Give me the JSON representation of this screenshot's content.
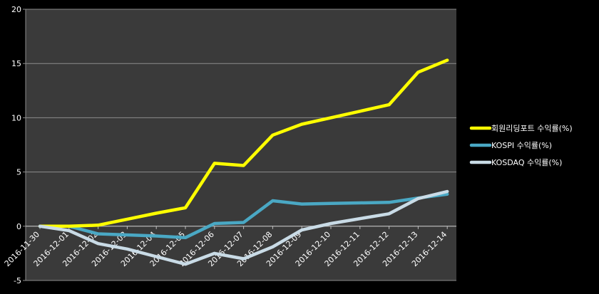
{
  "colors": {
    "background": "#000000",
    "plot_area": "#3a3a3a",
    "gridline": "#8c8c8c",
    "axis_text": "#ffffff",
    "series": [
      "#ffff00",
      "#4aa8c4",
      "#c9dbe6"
    ]
  },
  "chart_data": {
    "type": "line",
    "title": "",
    "xlabel": "",
    "ylabel": "",
    "ylim": [
      -5,
      20
    ],
    "yticks": [
      -5,
      0,
      5,
      10,
      15,
      20
    ],
    "grid": true,
    "legend_position": "right",
    "categories": [
      "2016-11-30",
      "2016-12-01",
      "2016-12-02",
      "2016-12-03",
      "2016-12-04",
      "2016-12-05",
      "2016-12-06",
      "2016-12-07",
      "2016-12-08",
      "2016-12-09",
      "2016-12-10",
      "2016-12-11",
      "2016-12-12",
      "2016-12-13",
      "2016-12-14"
    ],
    "series": [
      {
        "name": "회원리딩포트 수익률(%)",
        "values": [
          0.0,
          0.0,
          0.1,
          0.65,
          1.2,
          1.7,
          5.8,
          5.6,
          8.4,
          9.4,
          10.0,
          10.6,
          11.2,
          14.2,
          15.3
        ]
      },
      {
        "name": "KOSPI 수익률(%)",
        "values": [
          0.0,
          0.0,
          -0.7,
          -0.8,
          -0.9,
          -1.05,
          0.25,
          0.35,
          2.35,
          2.05,
          2.1,
          2.15,
          2.2,
          2.6,
          2.95
        ]
      },
      {
        "name": "KOSDAQ 수익률(%)",
        "values": [
          0.0,
          -0.4,
          -1.6,
          -2.1,
          -2.8,
          -3.5,
          -2.5,
          -3.0,
          -1.9,
          -0.35,
          0.25,
          0.7,
          1.15,
          2.55,
          3.2
        ]
      }
    ]
  }
}
